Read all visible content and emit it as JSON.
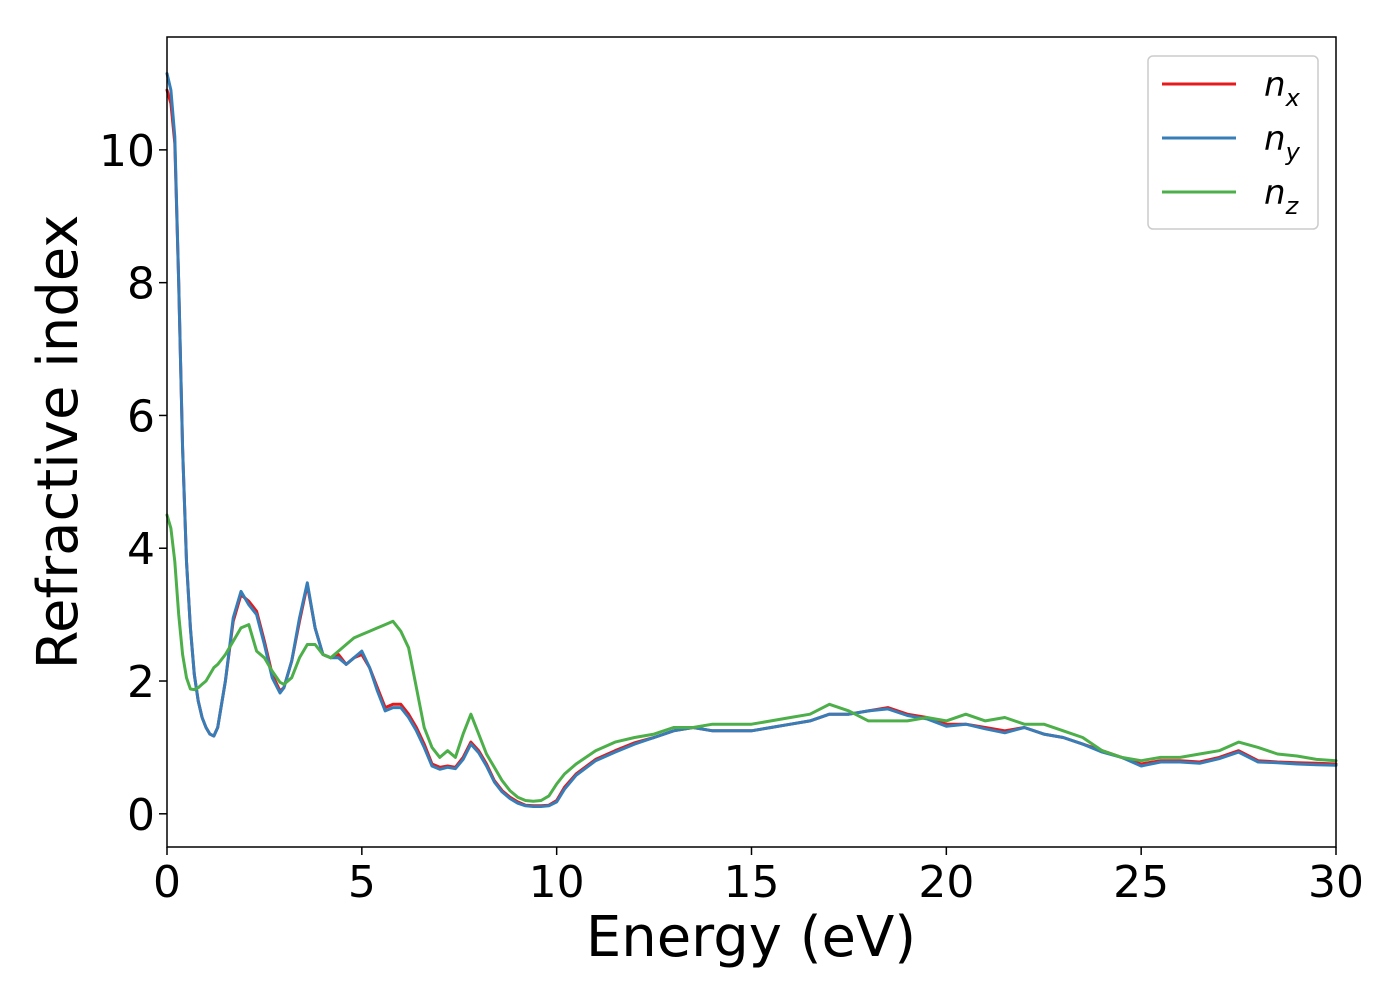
{
  "chart_data": {
    "type": "line",
    "title": "",
    "xlabel": "Energy (eV)",
    "ylabel": "Refractive index",
    "xlim": [
      0,
      30
    ],
    "ylim": [
      -0.5,
      11.7
    ],
    "grid": false,
    "legend_position": "top-right",
    "xticks": [
      "0",
      "5",
      "10",
      "15",
      "20",
      "25",
      "30"
    ],
    "yticks": [
      "0",
      "2",
      "4",
      "6",
      "8",
      "10"
    ],
    "series": [
      {
        "name": "n",
        "subscript": "x",
        "color": "#e41a1c",
        "x": [
          0,
          0.1,
          0.2,
          0.3,
          0.4,
          0.5,
          0.6,
          0.7,
          0.8,
          0.9,
          1.0,
          1.1,
          1.2,
          1.3,
          1.5,
          1.7,
          1.9,
          2.1,
          2.3,
          2.5,
          2.7,
          2.9,
          3.0,
          3.2,
          3.4,
          3.6,
          3.8,
          4.0,
          4.2,
          4.4,
          4.6,
          4.8,
          5.0,
          5.2,
          5.4,
          5.6,
          5.8,
          6.0,
          6.2,
          6.4,
          6.6,
          6.8,
          7.0,
          7.2,
          7.4,
          7.6,
          7.8,
          8.0,
          8.2,
          8.4,
          8.6,
          8.8,
          9.0,
          9.2,
          9.4,
          9.6,
          9.8,
          10.0,
          10.2,
          10.5,
          11.0,
          11.5,
          12.0,
          12.5,
          13.0,
          13.5,
          14.0,
          14.5,
          15.0,
          15.5,
          16.0,
          16.5,
          17.0,
          17.5,
          18.0,
          18.5,
          19.0,
          19.5,
          20.0,
          20.5,
          21.0,
          21.5,
          22.0,
          22.5,
          23.0,
          23.5,
          24.0,
          24.5,
          25.0,
          25.5,
          26.0,
          26.5,
          27.0,
          27.5,
          28.0,
          28.5,
          29.0,
          29.5,
          30.0
        ],
        "values": [
          10.9,
          10.7,
          10.1,
          8.0,
          5.5,
          3.8,
          2.8,
          2.1,
          1.7,
          1.45,
          1.3,
          1.2,
          1.17,
          1.3,
          2.0,
          2.9,
          3.3,
          3.2,
          3.05,
          2.6,
          2.1,
          1.85,
          1.9,
          2.3,
          2.9,
          3.45,
          2.8,
          2.4,
          2.35,
          2.4,
          2.25,
          2.35,
          2.4,
          2.2,
          1.9,
          1.6,
          1.65,
          1.65,
          1.5,
          1.3,
          1.05,
          0.75,
          0.7,
          0.72,
          0.7,
          0.85,
          1.08,
          0.95,
          0.75,
          0.5,
          0.35,
          0.25,
          0.18,
          0.13,
          0.12,
          0.12,
          0.13,
          0.2,
          0.4,
          0.6,
          0.82,
          0.95,
          1.07,
          1.15,
          1.25,
          1.3,
          1.25,
          1.25,
          1.25,
          1.3,
          1.35,
          1.4,
          1.5,
          1.5,
          1.55,
          1.6,
          1.5,
          1.45,
          1.35,
          1.35,
          1.3,
          1.25,
          1.3,
          1.2,
          1.15,
          1.05,
          0.95,
          0.85,
          0.75,
          0.8,
          0.8,
          0.78,
          0.85,
          0.95,
          0.8,
          0.78,
          0.77,
          0.76,
          0.75
        ]
      },
      {
        "name": "n",
        "subscript": "y",
        "color": "#377eb8",
        "x": [
          0,
          0.1,
          0.2,
          0.3,
          0.4,
          0.5,
          0.6,
          0.7,
          0.8,
          0.9,
          1.0,
          1.1,
          1.2,
          1.3,
          1.5,
          1.7,
          1.9,
          2.1,
          2.3,
          2.5,
          2.7,
          2.9,
          3.0,
          3.2,
          3.4,
          3.6,
          3.8,
          4.0,
          4.2,
          4.4,
          4.6,
          4.8,
          5.0,
          5.2,
          5.4,
          5.6,
          5.8,
          6.0,
          6.2,
          6.4,
          6.6,
          6.8,
          7.0,
          7.2,
          7.4,
          7.6,
          7.8,
          8.0,
          8.2,
          8.4,
          8.6,
          8.8,
          9.0,
          9.2,
          9.4,
          9.6,
          9.8,
          10.0,
          10.2,
          10.5,
          11.0,
          11.5,
          12.0,
          12.5,
          13.0,
          13.5,
          14.0,
          14.5,
          15.0,
          15.5,
          16.0,
          16.5,
          17.0,
          17.5,
          18.0,
          18.5,
          19.0,
          19.5,
          20.0,
          20.5,
          21.0,
          21.5,
          22.0,
          22.5,
          23.0,
          23.5,
          24.0,
          24.5,
          25.0,
          25.5,
          26.0,
          26.5,
          27.0,
          27.5,
          28.0,
          28.5,
          29.0,
          29.5,
          30.0
        ],
        "values": [
          11.15,
          10.9,
          10.2,
          8.0,
          5.5,
          3.8,
          2.8,
          2.1,
          1.7,
          1.45,
          1.3,
          1.2,
          1.17,
          1.3,
          2.0,
          2.95,
          3.35,
          3.15,
          3.0,
          2.55,
          2.05,
          1.82,
          1.9,
          2.3,
          2.95,
          3.48,
          2.8,
          2.4,
          2.35,
          2.35,
          2.25,
          2.35,
          2.45,
          2.2,
          1.85,
          1.55,
          1.6,
          1.6,
          1.45,
          1.25,
          1.0,
          0.72,
          0.67,
          0.7,
          0.68,
          0.82,
          1.05,
          0.92,
          0.72,
          0.48,
          0.33,
          0.23,
          0.16,
          0.12,
          0.11,
          0.11,
          0.12,
          0.18,
          0.37,
          0.58,
          0.8,
          0.93,
          1.05,
          1.15,
          1.25,
          1.3,
          1.25,
          1.25,
          1.25,
          1.3,
          1.35,
          1.4,
          1.5,
          1.5,
          1.55,
          1.58,
          1.48,
          1.43,
          1.32,
          1.35,
          1.28,
          1.22,
          1.3,
          1.2,
          1.15,
          1.05,
          0.93,
          0.85,
          0.72,
          0.78,
          0.78,
          0.76,
          0.83,
          0.93,
          0.78,
          0.77,
          0.75,
          0.74,
          0.73
        ]
      },
      {
        "name": "n",
        "subscript": "z",
        "color": "#4daf4a",
        "x": [
          0,
          0.1,
          0.2,
          0.3,
          0.4,
          0.5,
          0.6,
          0.7,
          0.8,
          0.9,
          1.0,
          1.1,
          1.2,
          1.3,
          1.5,
          1.7,
          1.9,
          2.1,
          2.3,
          2.5,
          2.7,
          2.9,
          3.0,
          3.2,
          3.4,
          3.6,
          3.8,
          4.0,
          4.2,
          4.4,
          4.6,
          4.8,
          5.0,
          5.2,
          5.4,
          5.6,
          5.8,
          6.0,
          6.2,
          6.4,
          6.6,
          6.8,
          7.0,
          7.2,
          7.4,
          7.6,
          7.8,
          8.0,
          8.2,
          8.4,
          8.6,
          8.8,
          9.0,
          9.2,
          9.4,
          9.6,
          9.8,
          10.0,
          10.2,
          10.5,
          11.0,
          11.5,
          12.0,
          12.5,
          13.0,
          13.5,
          14.0,
          14.5,
          15.0,
          15.5,
          16.0,
          16.5,
          17.0,
          17.5,
          18.0,
          18.5,
          19.0,
          19.5,
          20.0,
          20.5,
          21.0,
          21.5,
          22.0,
          22.5,
          23.0,
          23.5,
          24.0,
          24.5,
          25.0,
          25.5,
          26.0,
          26.5,
          27.0,
          27.5,
          28.0,
          28.5,
          29.0,
          29.5,
          30.0
        ],
        "values": [
          4.5,
          4.3,
          3.8,
          3.0,
          2.4,
          2.05,
          1.88,
          1.87,
          1.9,
          1.95,
          2.0,
          2.1,
          2.2,
          2.25,
          2.4,
          2.6,
          2.8,
          2.85,
          2.45,
          2.35,
          2.15,
          1.98,
          1.95,
          2.05,
          2.35,
          2.55,
          2.55,
          2.4,
          2.35,
          2.45,
          2.55,
          2.65,
          2.7,
          2.75,
          2.8,
          2.85,
          2.9,
          2.75,
          2.5,
          1.9,
          1.3,
          1.0,
          0.85,
          0.95,
          0.85,
          1.2,
          1.5,
          1.2,
          0.9,
          0.7,
          0.5,
          0.35,
          0.25,
          0.2,
          0.19,
          0.2,
          0.27,
          0.45,
          0.6,
          0.75,
          0.95,
          1.08,
          1.15,
          1.2,
          1.3,
          1.3,
          1.35,
          1.35,
          1.35,
          1.4,
          1.45,
          1.5,
          1.65,
          1.55,
          1.4,
          1.4,
          1.4,
          1.45,
          1.4,
          1.5,
          1.4,
          1.45,
          1.35,
          1.35,
          1.25,
          1.15,
          0.95,
          0.85,
          0.8,
          0.85,
          0.85,
          0.9,
          0.95,
          1.08,
          1.0,
          0.9,
          0.87,
          0.82,
          0.8
        ]
      }
    ]
  }
}
